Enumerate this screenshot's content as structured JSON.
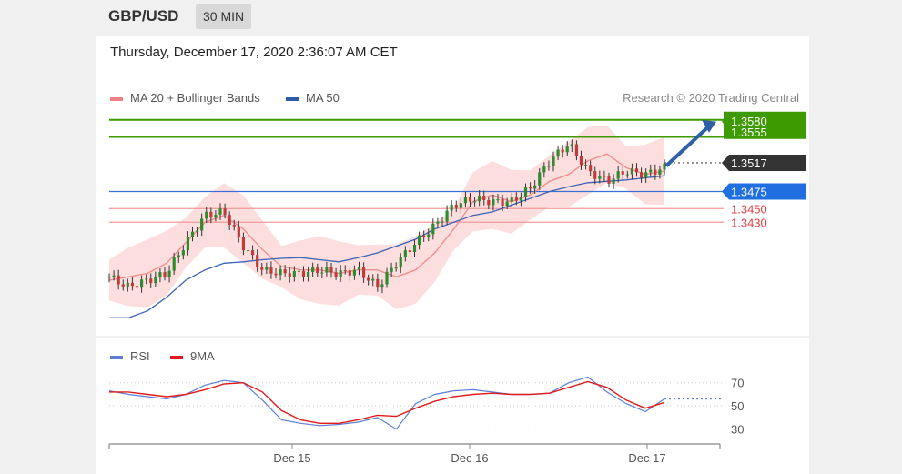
{
  "header": {
    "symbol": "GBP/USD",
    "timeframe": "30 MIN"
  },
  "datetime": "Thursday, December 17, 2020 2:36:07 AM CET",
  "legend": {
    "items": [
      {
        "label": "MA 20 + Bollinger Bands",
        "color": "#f08080"
      },
      {
        "label": "MA 50",
        "color": "#2f5aa8"
      }
    ],
    "credit": "Research © 2020 Trading Central"
  },
  "rsi_legend": {
    "items": [
      {
        "label": "RSI",
        "color": "#5b7fd6"
      },
      {
        "label": "9MA",
        "color": "#e01b1b"
      }
    ]
  },
  "chart_data": [
    {
      "type": "line",
      "title": "",
      "xlabel": "",
      "ylabel": "",
      "x_tick_labels": [
        "Dec 15",
        "Dec 16",
        "Dec 17"
      ],
      "ylim": [
        1.3265,
        1.3585
      ],
      "levels": [
        {
          "label": "1.3580",
          "value": 1.358,
          "color": "#3d9a00"
        },
        {
          "label": "1.3555",
          "value": 1.3555,
          "color": "#3d9a00"
        },
        {
          "label": "1.3517",
          "value": 1.3517,
          "color": "#333333"
        },
        {
          "label": "1.3475",
          "value": 1.3475,
          "color": "#1f6fe0"
        },
        {
          "label": "1.3450",
          "value": 1.345,
          "color": "#e03c3c"
        },
        {
          "label": "1.3430",
          "value": 1.343,
          "color": "#e03c3c"
        }
      ],
      "series": [
        {
          "name": "MA 20 + Bollinger Bands",
          "values": [
            1.3345,
            1.335,
            1.3355,
            1.337,
            1.34,
            1.343,
            1.344,
            1.342,
            1.339,
            1.3365,
            1.336,
            1.336,
            1.3355,
            1.336,
            1.336,
            1.335,
            1.336,
            1.3385,
            1.342,
            1.346,
            1.347,
            1.346,
            1.347,
            1.349,
            1.35,
            1.352,
            1.353,
            1.351,
            1.35,
            1.3505
          ]
        },
        {
          "name": "MA 50",
          "values": [
            1.329,
            1.329,
            1.33,
            1.332,
            1.3345,
            1.336,
            1.337,
            1.3372,
            1.3375,
            1.3377,
            1.3378,
            1.3375,
            1.3372,
            1.3378,
            1.3385,
            1.3395,
            1.3405,
            1.342,
            1.343,
            1.344,
            1.3445,
            1.3455,
            1.3465,
            1.3475,
            1.3482,
            1.3488,
            1.349,
            1.3492,
            1.3495,
            1.3498
          ]
        },
        {
          "name": "Price",
          "values": [
            1.335,
            1.3335,
            1.3345,
            1.3355,
            1.34,
            1.344,
            1.3445,
            1.3395,
            1.336,
            1.3355,
            1.3355,
            1.336,
            1.3355,
            1.336,
            1.3335,
            1.337,
            1.34,
            1.3425,
            1.3455,
            1.3465,
            1.346,
            1.346,
            1.348,
            1.352,
            1.3545,
            1.3505,
            1.349,
            1.3505,
            1.35,
            1.351
          ]
        }
      ]
    },
    {
      "type": "line",
      "title": "",
      "ylim": [
        25,
        80
      ],
      "y_ticks": [
        70,
        50,
        30
      ],
      "x_tick_labels": [
        "Dec 15",
        "Dec 16",
        "Dec 17"
      ],
      "series": [
        {
          "name": "RSI",
          "values": [
            63,
            60,
            58,
            56,
            60,
            68,
            72,
            70,
            55,
            38,
            35,
            33,
            34,
            36,
            40,
            30,
            52,
            60,
            63,
            64,
            62,
            60,
            60,
            61,
            70,
            75,
            62,
            52,
            45,
            56
          ]
        },
        {
          "name": "9MA",
          "values": [
            62,
            62,
            60,
            58,
            60,
            64,
            69,
            70,
            62,
            46,
            38,
            35,
            35,
            38,
            42,
            41,
            48,
            54,
            58,
            60,
            61,
            60,
            60,
            61,
            66,
            71,
            66,
            55,
            48,
            53
          ]
        }
      ]
    }
  ]
}
